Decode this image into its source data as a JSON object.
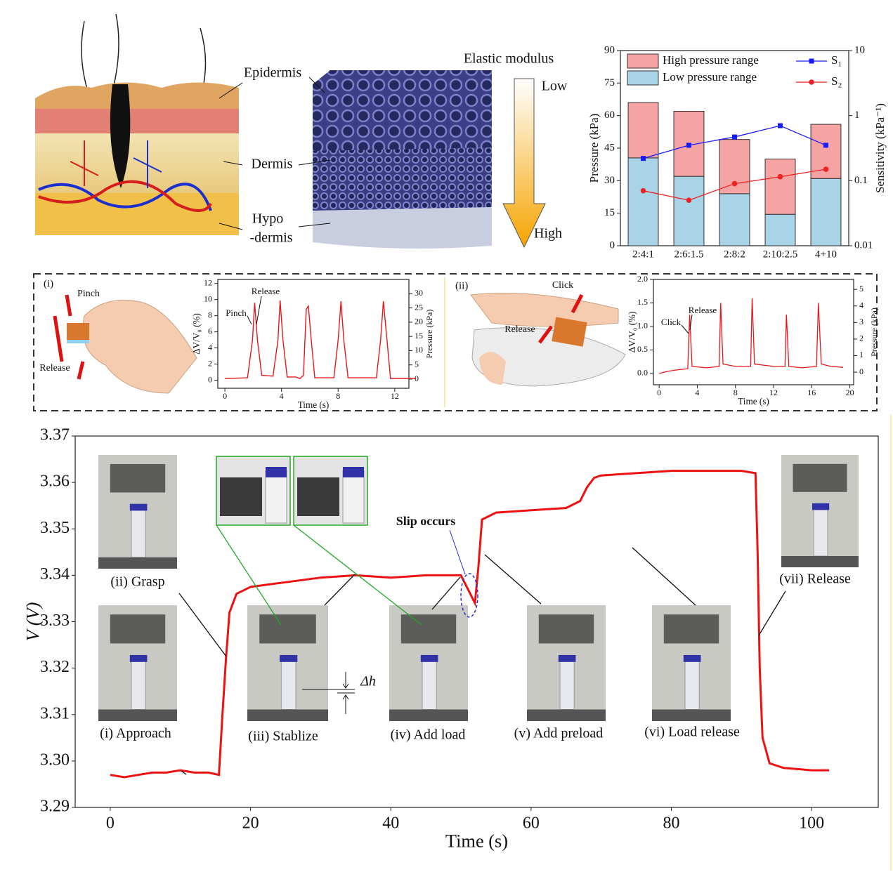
{
  "illustration": {
    "epidermis": "Epidermis",
    "dermis": "Dermis",
    "hypodermis_top": "Hypo",
    "hypodermis_bottom": "-dermis",
    "elastic_modulus": "Elastic modulus",
    "low": "Low",
    "high": "High"
  },
  "panel_i": {
    "label": "(i)",
    "pinch": "Pinch",
    "release": "Release"
  },
  "panel_ii": {
    "label": "(ii)",
    "click": "Click",
    "release": "Release"
  },
  "chart_data": [
    {
      "type": "bar",
      "categories": [
        "2:4:1",
        "2:6:1.5",
        "2:8:2",
        "2:10:2.5",
        "4+10"
      ],
      "stacked": true,
      "y_label": "Pressure (kPa)",
      "y2_label": "Sensitivity (kPa⁻¹)",
      "ylim": [
        0,
        90
      ],
      "yticks": [
        0,
        15,
        30,
        45,
        60,
        75,
        90
      ],
      "y2lim": [
        0.01,
        10
      ],
      "y2ticks": [
        0.01,
        0.1,
        1,
        10
      ],
      "y2_log": true,
      "series": [
        {
          "name": "High pressure range",
          "color": "#f5a3a3",
          "values": [
            25.5,
            30,
            25,
            25.5,
            25
          ]
        },
        {
          "name": "Low pressure range",
          "color": "#a9d3e6",
          "values": [
            40.5,
            32,
            24,
            14.5,
            31
          ]
        },
        {
          "name": "S₁",
          "color": "#1a1aff",
          "axis": "y2",
          "marker": "square",
          "values": [
            0.22,
            0.35,
            0.47,
            0.7,
            0.35
          ]
        },
        {
          "name": "S₂",
          "color": "#ee2222",
          "axis": "y2",
          "marker": "circle",
          "values": [
            0.07,
            0.05,
            0.09,
            0.115,
            0.15
          ]
        }
      ]
    },
    {
      "type": "line",
      "x_label": "Time (s)",
      "y_label": "ΔV/V₀ (%)",
      "y2_label": "Pressure (kPa)",
      "color": "#e8161b",
      "annotations": [
        "Pinch",
        "Release"
      ],
      "xlim": [
        -0.5,
        13
      ],
      "xticks": [
        0,
        4,
        8,
        12
      ],
      "ylim": [
        -1,
        12.5
      ],
      "yticks": [
        0,
        2,
        4,
        6,
        8,
        10,
        12
      ],
      "y2lim": [
        -3.2,
        35
      ],
      "y2ticks": [
        0,
        5,
        10,
        15,
        20,
        25,
        30
      ],
      "x": [
        0,
        1.6,
        1.95,
        2.1,
        2.3,
        2.6,
        3.4,
        3.75,
        3.9,
        4.1,
        4.4,
        5.0,
        5.3,
        5.55,
        5.75,
        5.9,
        6.1,
        6.35,
        7.7,
        8.0,
        8.2,
        8.4,
        8.7,
        10.7,
        11.0,
        11.2,
        11.45,
        11.7,
        13.5
      ],
      "values": [
        0.2,
        0.3,
        5,
        9.6,
        5,
        0.6,
        0.5,
        5,
        9.9,
        5,
        0.4,
        0.4,
        0.2,
        0.6,
        8.8,
        9.2,
        5,
        0.3,
        0.3,
        5,
        9.8,
        5,
        0.3,
        0.3,
        5,
        9.8,
        5,
        0.2,
        0.2
      ]
    },
    {
      "type": "line",
      "x_label": "Time (s)",
      "y_label": "ΔV/V₀ (%)",
      "y2_label": "Pressure (kPa)",
      "color": "#e8161b",
      "annotations": [
        "Click",
        "Release"
      ],
      "xlim": [
        -0.6,
        20.4
      ],
      "xticks": [
        0,
        4,
        8,
        12,
        16,
        20
      ],
      "ylim": [
        -0.24,
        2.0
      ],
      "yticks": [
        {
          "value": 0,
          "label": "0.0"
        },
        0.5,
        {
          "value": 1,
          "label": "1.0"
        },
        1.5,
        {
          "value": 2,
          "label": "2.0"
        }
      ],
      "y2lim": [
        -0.76,
        5.6
      ],
      "y2ticks": [
        0,
        1,
        2,
        3,
        4,
        5
      ],
      "x": [
        0,
        1,
        2,
        3,
        3.2,
        3.45,
        5,
        6.3,
        6.45,
        6.7,
        8,
        9.6,
        9.75,
        10,
        12,
        13.2,
        13.35,
        13.6,
        15,
        16.5,
        16.7,
        17,
        18,
        19.3
      ],
      "values": [
        0,
        0.05,
        0.08,
        0.1,
        1.25,
        0.15,
        0.12,
        0.15,
        1.5,
        0.2,
        0.15,
        0.15,
        1.6,
        0.2,
        0.15,
        0.15,
        1.25,
        0.15,
        0.12,
        0.15,
        1.5,
        0.2,
        0.15,
        0.13
      ]
    },
    {
      "type": "line",
      "x_label": "Time (s)",
      "y_label": "V (V)",
      "color": "#ee1111",
      "stage_labels": [
        "(ii) Grasp",
        "(i) Approach",
        "(iii) Stablize",
        "(iv) Add load",
        "(v) Add preload",
        "(vi) Load release",
        "(vii) Release"
      ],
      "annotations": [
        "Slip occurs",
        "Δh"
      ],
      "xlim": [
        -5,
        109.5
      ],
      "xticks": [
        0,
        20,
        40,
        60,
        80,
        100
      ],
      "ylim": [
        3.29,
        3.37
      ],
      "yticks": [
        3.29,
        {
          "value": 3.3,
          "label": "3.30"
        },
        3.31,
        3.32,
        3.33,
        3.34,
        3.35,
        3.36,
        3.37
      ],
      "x": [
        0,
        2,
        4,
        6,
        8,
        10,
        12,
        14,
        15.5,
        16,
        16.5,
        17,
        18,
        20,
        25,
        30,
        35,
        40,
        45,
        50,
        51,
        52,
        52.5,
        53,
        55,
        60,
        65,
        67,
        68,
        69,
        70,
        75,
        80,
        85,
        90,
        92,
        92.3,
        92.6,
        93,
        94,
        96,
        100,
        102.5
      ],
      "values": [
        3.297,
        3.2965,
        3.297,
        3.2975,
        3.2975,
        3.298,
        3.2975,
        3.2975,
        3.297,
        3.31,
        3.322,
        3.332,
        3.336,
        3.3375,
        3.3385,
        3.3395,
        3.34,
        3.3395,
        3.34,
        3.34,
        3.337,
        3.334,
        3.342,
        3.352,
        3.3535,
        3.354,
        3.3545,
        3.356,
        3.359,
        3.361,
        3.3615,
        3.362,
        3.3625,
        3.3625,
        3.3625,
        3.362,
        3.345,
        3.32,
        3.305,
        3.2995,
        3.2985,
        3.298,
        3.298
      ]
    }
  ]
}
